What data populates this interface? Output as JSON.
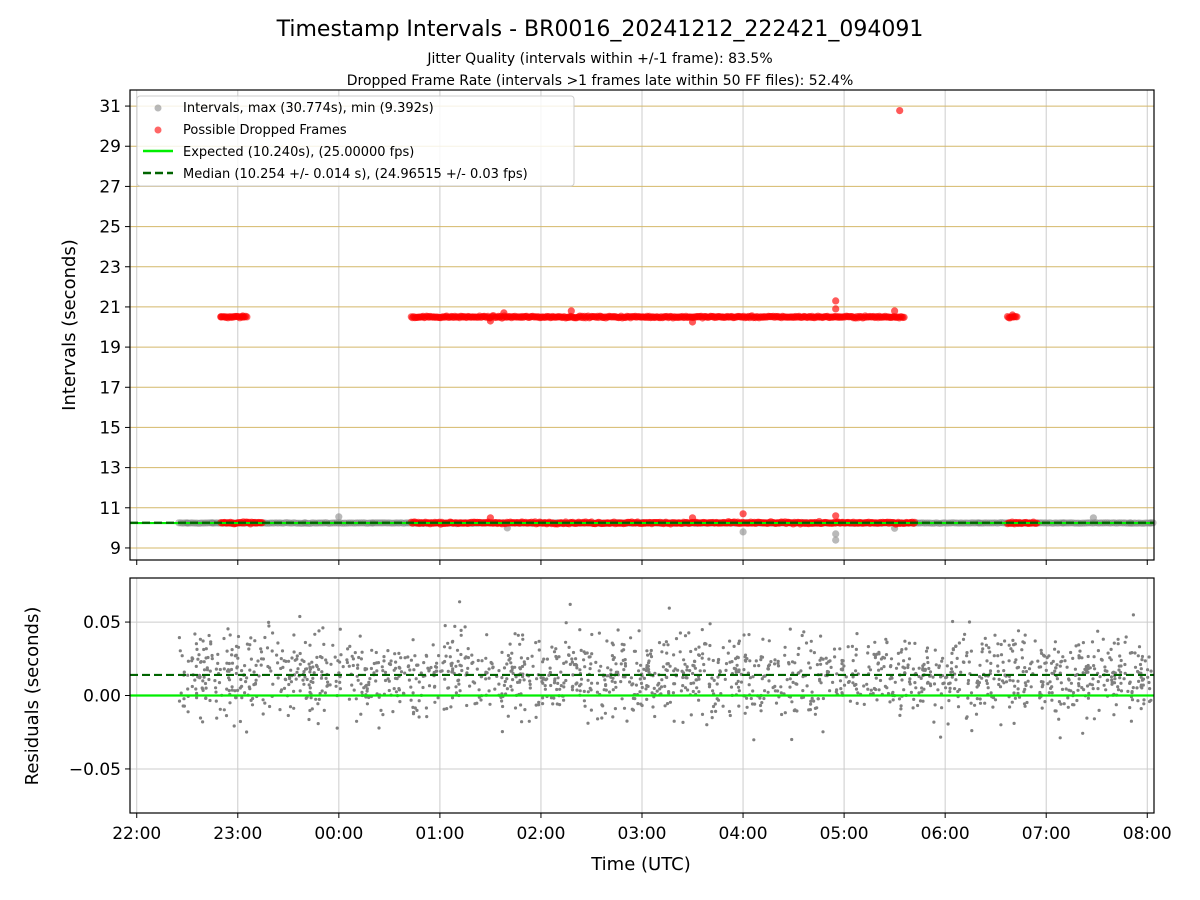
{
  "title": "Timestamp Intervals - BR0016_20241212_222421_094091",
  "subtitle_1": "Jitter Quality (intervals within +/-1 frame): 83.5%",
  "subtitle_2": "Dropped Frame Rate (intervals >1 frames late within 50 FF files): 52.4%",
  "colors": {
    "intervals": "#808080",
    "dropped": "#ff0000",
    "expected": "#00ee00",
    "median": "#006400",
    "hgrid_top": "#d4b86a",
    "grid": "#cccccc"
  },
  "chart_data": [
    {
      "type": "scatter",
      "ylabel": "Intervals (seconds)",
      "xlim": [
        "21:56",
        "08:04"
      ],
      "ylim": [
        8.4,
        31.8
      ],
      "yticks": [
        "9",
        "11",
        "13",
        "15",
        "17",
        "19",
        "21",
        "23",
        "25",
        "27",
        "29",
        "31"
      ],
      "grid": true,
      "legend_position": "upper left",
      "series": [
        {
          "name": "Intervals, max (30.774s), min (9.392s)",
          "kind": "scatter",
          "color": "#808080",
          "points": [
            [
              "22:30",
              10.24
            ],
            [
              "22:45",
              10.25
            ],
            [
              "23:10",
              10.26
            ],
            [
              "23:40",
              10.25
            ],
            [
              "00:00",
              10.55
            ],
            [
              "00:20",
              10.24
            ],
            [
              "00:50",
              10.22
            ],
            [
              "01:10",
              10.21
            ],
            [
              "01:40",
              10.0
            ],
            [
              "02:00",
              10.25
            ],
            [
              "03:00",
              10.26
            ],
            [
              "04:00",
              9.8
            ],
            [
              "04:55",
              9.392
            ],
            [
              "04:55",
              9.7
            ],
            [
              "05:30",
              9.98
            ],
            [
              "06:20",
              10.24
            ],
            [
              "06:50",
              10.25
            ],
            [
              "07:10",
              10.24
            ],
            [
              "07:28",
              10.5
            ],
            [
              "07:50",
              10.25
            ],
            [
              "08:02",
              10.24
            ]
          ]
        },
        {
          "name": "Possible Dropped Frames",
          "kind": "scatter",
          "color": "#ff0000",
          "points": [
            [
              "22:50",
              20.5
            ],
            [
              "23:03",
              20.55
            ],
            [
              "01:30",
              20.3
            ],
            [
              "01:38",
              20.7
            ],
            [
              "02:18",
              20.8
            ],
            [
              "03:30",
              20.25
            ],
            [
              "04:55",
              21.3
            ],
            [
              "04:55",
              20.9
            ],
            [
              "05:30",
              20.8
            ],
            [
              "05:33",
              30.774
            ],
            [
              "06:40",
              20.6
            ],
            [
              "04:00",
              10.7
            ],
            [
              "04:55",
              10.6
            ],
            [
              "01:30",
              10.5
            ],
            [
              "03:30",
              10.5
            ]
          ],
          "bands": [
            {
              "y": 20.5,
              "ranges": [
                [
                  "22:50",
                  "23:06"
                ],
                [
                  "00:43",
                  "05:36"
                ],
                [
                  "06:37",
                  "06:43"
                ]
              ]
            },
            {
              "y": 10.25,
              "ranges": [
                [
                  "22:50",
                  "23:15"
                ],
                [
                  "00:43",
                  "05:42"
                ],
                [
                  "06:37",
                  "06:55"
                ]
              ]
            }
          ]
        },
        {
          "name": "Expected (10.240s), (25.00000 fps)",
          "kind": "line",
          "color": "#00ee00",
          "y": 10.24
        },
        {
          "name": "Median (10.254 +/- 0.014 s), (24.96515 +/- 0.03 fps)",
          "kind": "dashed-line",
          "color": "#006400",
          "y": 10.254
        }
      ]
    },
    {
      "type": "scatter",
      "ylabel": "Residuals (seconds)",
      "xlabel": "Time (UTC)",
      "xlim": [
        "21:56",
        "08:04"
      ],
      "ylim": [
        -0.08,
        0.08
      ],
      "yticks": [
        "−0.05",
        "0.00",
        "0.05"
      ],
      "xticks": [
        "22:00",
        "23:00",
        "00:00",
        "01:00",
        "02:00",
        "03:00",
        "04:00",
        "05:00",
        "06:00",
        "07:00",
        "08:00"
      ],
      "grid": true,
      "series": [
        {
          "name": "residuals",
          "kind": "scatter",
          "color": "#808080",
          "x_range": [
            "22:25",
            "08:04"
          ],
          "center": 0.014,
          "spread": 0.02,
          "count": 1700
        },
        {
          "name": "expected",
          "kind": "line",
          "color": "#00ee00",
          "y": 0.0
        },
        {
          "name": "median",
          "kind": "dashed-line",
          "color": "#006400",
          "y": 0.014
        }
      ]
    }
  ]
}
